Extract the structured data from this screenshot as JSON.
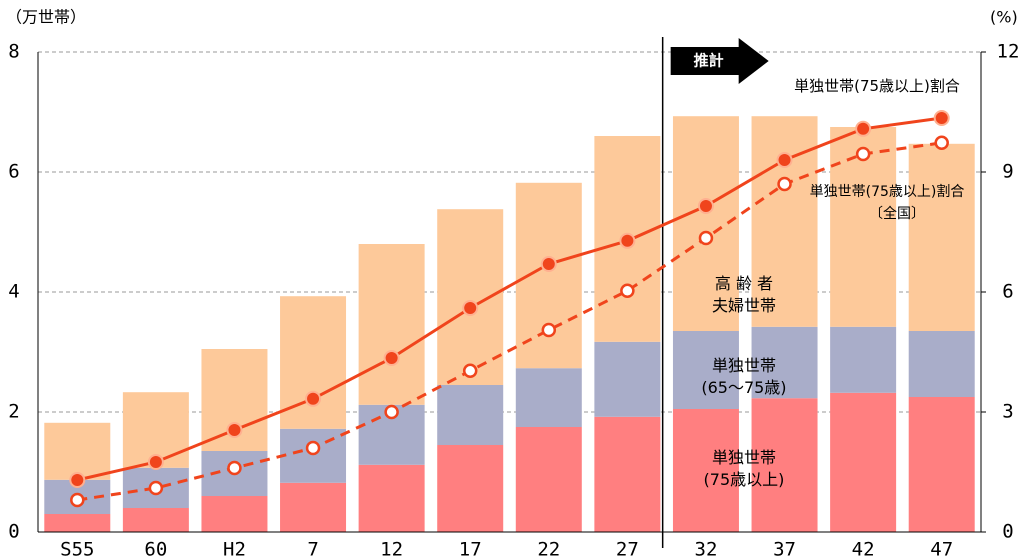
{
  "chart_data": {
    "type": "bar",
    "stacked": true,
    "y_unit_label": "（万世帯）",
    "y2_unit_label": "(%)",
    "forecast_label": "推計",
    "forecast_start_index": 8,
    "categories": [
      "S55",
      "60",
      "H2",
      "7",
      "12",
      "17",
      "22",
      "27",
      "32",
      "37",
      "42",
      "47"
    ],
    "ylim": [
      0,
      8
    ],
    "yticks": [
      0,
      2,
      4,
      6,
      8
    ],
    "y2lim": [
      0,
      12
    ],
    "y2ticks": [
      0,
      3,
      6,
      9,
      12
    ],
    "grid": true,
    "series": [
      {
        "name": [
          "単独世帯",
          "(75歳以上)"
        ],
        "color": "#ff7f80",
        "values": [
          0.3,
          0.4,
          0.6,
          0.82,
          1.12,
          1.45,
          1.75,
          1.92,
          2.05,
          2.23,
          2.32,
          2.25
        ]
      },
      {
        "name": [
          "単独世帯",
          "(65～75歳)"
        ],
        "color": "#a9adc9",
        "values": [
          0.57,
          0.67,
          0.75,
          0.9,
          1.0,
          1.0,
          0.98,
          1.25,
          1.3,
          1.19,
          1.1,
          1.1
        ]
      },
      {
        "name": [
          "高 齢 者",
          "夫婦世帯"
        ],
        "color": "#fdc99a",
        "values": [
          0.95,
          1.26,
          1.7,
          2.21,
          2.68,
          2.93,
          3.09,
          3.43,
          3.58,
          3.51,
          3.33,
          3.12
        ]
      },
      {
        "name": [
          "単独世帯(75歳以上)割合"
        ],
        "type": "line",
        "axis": "y2",
        "color": "#f0441c",
        "dashed": false,
        "values": [
          1.3,
          1.75,
          2.55,
          3.33,
          4.35,
          5.6,
          6.7,
          7.28,
          8.15,
          9.3,
          10.08,
          10.35
        ]
      },
      {
        "name": [
          "単独世帯(75歳以上)割合",
          "〔全国〕"
        ],
        "type": "line",
        "axis": "y2",
        "color": "#f0441c",
        "dashed": true,
        "values": [
          0.8,
          1.1,
          1.6,
          2.1,
          3.0,
          4.03,
          5.05,
          6.03,
          7.35,
          8.7,
          9.45,
          9.73
        ]
      }
    ]
  }
}
